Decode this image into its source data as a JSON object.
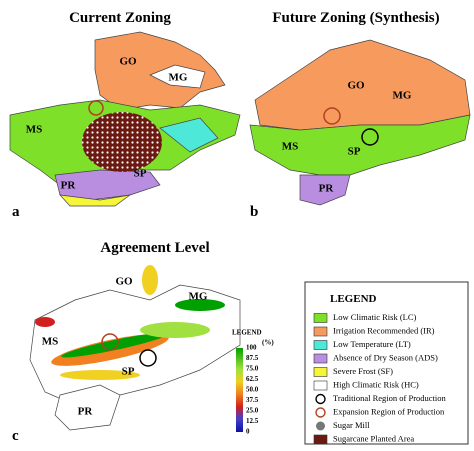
{
  "panels": [
    {
      "label": "a",
      "title": "Current Zoning",
      "states": [
        "GO",
        "MG",
        "MS",
        "SP",
        "PR"
      ]
    },
    {
      "label": "b",
      "title": "Future Zoning (Synthesis)",
      "states": [
        "GO",
        "MG",
        "MS",
        "SP",
        "PR"
      ]
    },
    {
      "label": "c",
      "title": "Agreement Level",
      "states": [
        "GO",
        "MG",
        "MS",
        "SP",
        "PR"
      ]
    }
  ],
  "colorbar": {
    "title": "LEGEND",
    "unit": "(%)",
    "ticks": [
      "100",
      "87.5",
      "75.0",
      "62.5",
      "50.0",
      "37.5",
      "25.0",
      "12.5",
      "0"
    ]
  },
  "legend": {
    "title": "LEGEND",
    "items": [
      {
        "label": "Low Climatic Risk (LC)",
        "color": "#7fe02a",
        "kind": "box"
      },
      {
        "label": "Irrigation Recommended (IR)",
        "color": "#f79a5e",
        "kind": "box"
      },
      {
        "label": "Low Temperature (LT)",
        "color": "#4de8d8",
        "kind": "box"
      },
      {
        "label": "Absence of Dry Season (ADS)",
        "color": "#b98ee0",
        "kind": "box"
      },
      {
        "label": "Severe Frost (SF)",
        "color": "#f5f53a",
        "kind": "box"
      },
      {
        "label": "High Climatic Risk (HC)",
        "color": "#ffffff",
        "kind": "box"
      },
      {
        "label": "Traditional Region of Production",
        "color": "#000000",
        "kind": "ring"
      },
      {
        "label": "Expansion Region of Production",
        "color": "#b04020",
        "kind": "ring"
      },
      {
        "label": "Sugar Mill",
        "color": "#777777",
        "kind": "dot"
      },
      {
        "label": "Sugarcane Planted Area",
        "color": "#6b1a12",
        "kind": "box"
      }
    ]
  }
}
